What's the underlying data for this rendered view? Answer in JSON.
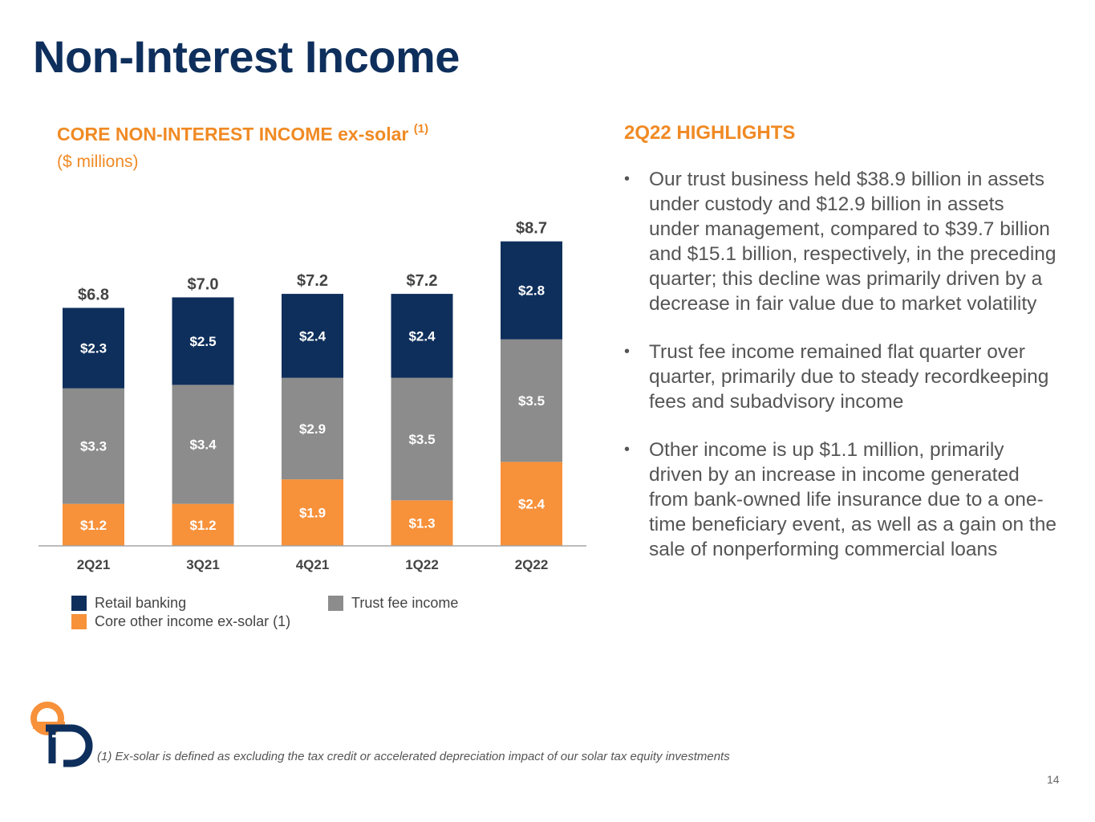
{
  "title": "Non-Interest Income",
  "chart_title": "CORE NON-INTEREST INCOME ex-solar",
  "chart_title_sup": "(1)",
  "chart_subtitle": "($ millions)",
  "colors": {
    "retail_banking": "#0e2f5c",
    "trust_fee_income": "#8c8c8c",
    "core_other_income": "#f7913a",
    "title": "#0e2f5c",
    "accent_orange": "#f08a24",
    "body_text": "#555555"
  },
  "chart_data": {
    "type": "bar",
    "stacked": true,
    "categories": [
      "2Q21",
      "3Q21",
      "4Q21",
      "1Q22",
      "2Q22"
    ],
    "series": [
      {
        "name": "Core other income ex-solar (1)",
        "values": [
          1.2,
          1.2,
          1.9,
          1.3,
          2.4
        ],
        "labels": [
          "$1.2",
          "$1.2",
          "$1.9",
          "$1.3",
          "$2.4"
        ],
        "color": "#f7913a"
      },
      {
        "name": "Trust fee income",
        "values": [
          3.3,
          3.4,
          2.9,
          3.5,
          3.5
        ],
        "labels": [
          "$3.3",
          "$3.4",
          "$2.9",
          "$3.5",
          "$3.5"
        ],
        "color": "#8c8c8c"
      },
      {
        "name": "Retail banking",
        "values": [
          2.3,
          2.5,
          2.4,
          2.4,
          2.8
        ],
        "labels": [
          "$2.3",
          "$2.5",
          "$2.4",
          "$2.4",
          "$2.8"
        ],
        "color": "#0e2f5c"
      }
    ],
    "totals": [
      6.8,
      7.0,
      7.2,
      7.2,
      8.7
    ],
    "total_labels": [
      "$6.8",
      "$7.0",
      "$7.2",
      "$7.2",
      "$8.7"
    ],
    "unit": "$ millions",
    "grid": false,
    "legend_position": "bottom"
  },
  "legend": [
    {
      "label": "Retail banking",
      "color": "#0e2f5c"
    },
    {
      "label": "Trust fee income",
      "color": "#8c8c8c"
    },
    {
      "label": "Core other income ex-solar (1)",
      "color": "#f7913a"
    }
  ],
  "highlights_title": "2Q22 HIGHLIGHTS",
  "highlights": [
    "Our trust business held $38.9 billion in assets under custody and $12.9 billion in assets under management, compared to $39.7 billion and $15.1 billion, respectively, in the preceding quarter; this decline was primarily driven by a decrease in fair value due to market volatility",
    "Trust fee income remained flat quarter over quarter, primarily due to steady recordkeeping fees and subadvisory income",
    "Other income is up $1.1 million, primarily driven by an increase in income generated from bank-owned life insurance due to a one-time beneficiary event, as well as a gain on the sale of nonperforming commercial loans"
  ],
  "bullet_glyph": "•",
  "footnote": "(1) Ex-solar is defined as excluding the tax credit or accelerated depreciation impact of our solar tax equity investments",
  "page_number": "14",
  "logo_icon": "company-logo-icon"
}
